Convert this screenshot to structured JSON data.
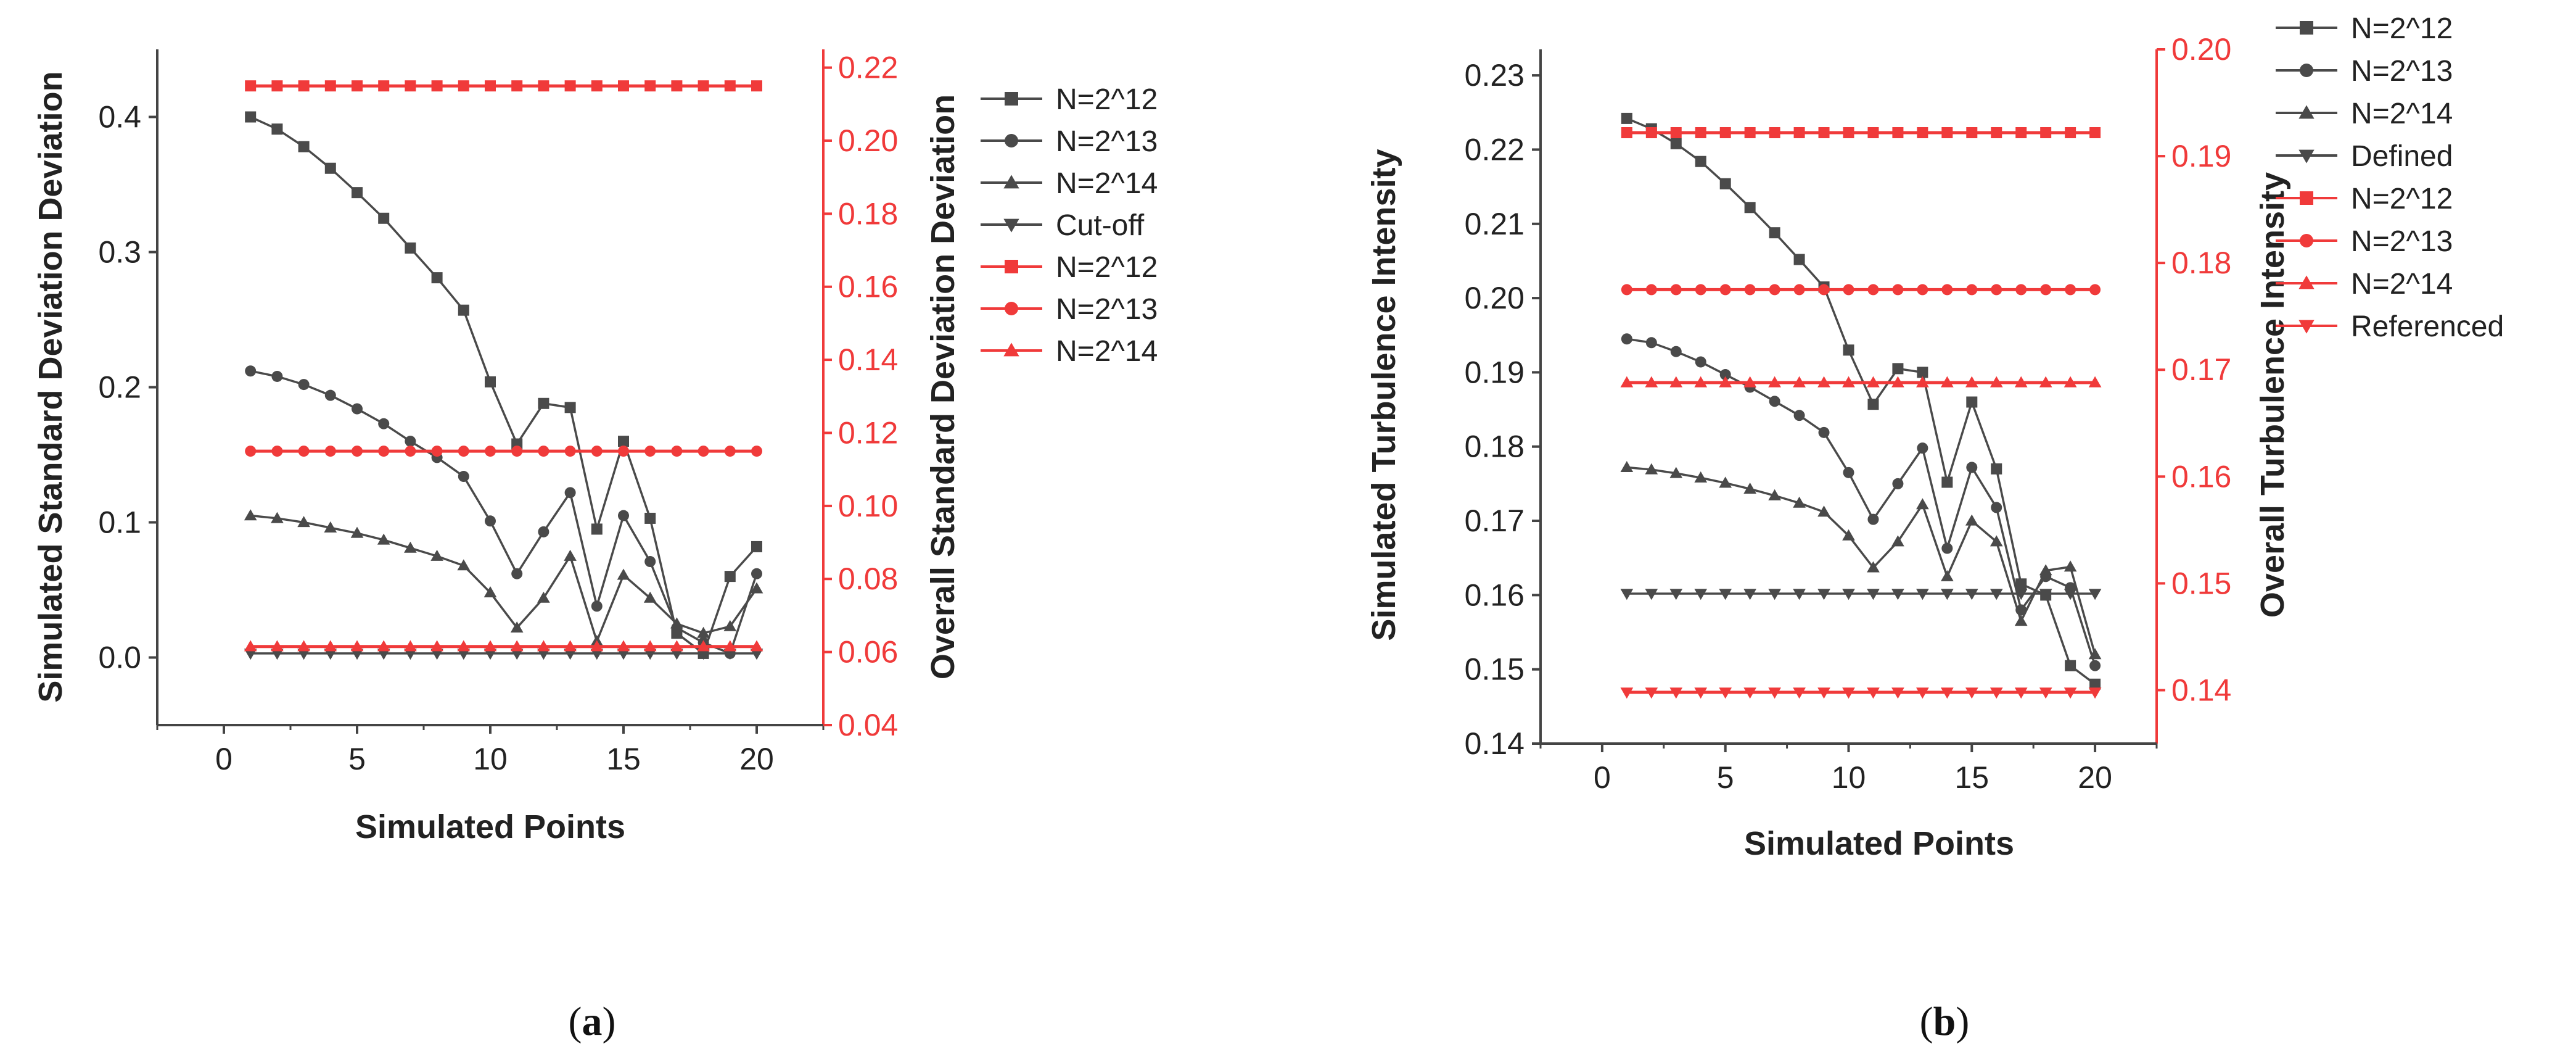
{
  "chart_data": [
    {
      "id": "a",
      "type": "line",
      "panel_label": "(a)",
      "panel_letter": "a",
      "xlabel": "Simulated Points",
      "ylabel": "Simulated Standard Deviation Deviation",
      "ylabel_right": "Overall Standard Deviation Deviation",
      "xlim": [
        -2.5,
        22.5
      ],
      "ylim": [
        -0.05,
        0.45
      ],
      "ylim_right": [
        0.04,
        0.225
      ],
      "x_ticks": [
        0,
        5,
        10,
        15,
        20
      ],
      "y_ticks": [
        "0.0",
        "0.1",
        "0.2",
        "0.3",
        "0.4"
      ],
      "y_ticks_right": [
        "0.04",
        "0.06",
        "0.08",
        "0.10",
        "0.12",
        "0.14",
        "0.16",
        "0.18",
        "0.20",
        "0.22"
      ],
      "legend_position": "outside-right",
      "x": [
        1,
        2,
        3,
        4,
        5,
        6,
        7,
        8,
        9,
        10,
        11,
        12,
        13,
        14,
        15,
        16,
        17,
        18,
        19,
        20
      ],
      "series": [
        {
          "name": "N=2^12",
          "axis": "left",
          "color": "#4a4a4a",
          "marker": "square",
          "values": [
            0.4,
            0.391,
            0.378,
            0.362,
            0.344,
            0.325,
            0.303,
            0.281,
            0.257,
            0.204,
            0.158,
            0.188,
            0.185,
            0.095,
            0.16,
            0.103,
            0.018,
            0.003,
            0.06,
            0.082
          ]
        },
        {
          "name": "N=2^13",
          "axis": "left",
          "color": "#4a4a4a",
          "marker": "circle",
          "values": [
            0.212,
            0.208,
            0.202,
            0.194,
            0.184,
            0.173,
            0.16,
            0.148,
            0.134,
            0.101,
            0.062,
            0.093,
            0.122,
            0.038,
            0.105,
            0.071,
            0.022,
            0.011,
            0.003,
            0.062
          ]
        },
        {
          "name": "N=2^14",
          "axis": "left",
          "color": "#4a4a4a",
          "marker": "triangle-up",
          "values": [
            0.105,
            0.103,
            0.1,
            0.096,
            0.092,
            0.087,
            0.081,
            0.075,
            0.068,
            0.048,
            0.022,
            0.044,
            0.075,
            0.012,
            0.061,
            0.044,
            0.025,
            0.018,
            0.023,
            0.051
          ]
        },
        {
          "name": "Cut-off",
          "axis": "left",
          "color": "#4a4a4a",
          "marker": "triangle-down",
          "values": [
            0.003,
            0.003,
            0.003,
            0.003,
            0.003,
            0.003,
            0.003,
            0.003,
            0.003,
            0.003,
            0.003,
            0.003,
            0.003,
            0.003,
            0.003,
            0.003,
            0.003,
            0.003,
            0.003,
            0.003
          ]
        },
        {
          "name": "N=2^12",
          "axis": "right",
          "color": "#f03a3a",
          "marker": "square",
          "values": [
            0.215,
            0.215,
            0.215,
            0.215,
            0.215,
            0.215,
            0.215,
            0.215,
            0.215,
            0.215,
            0.215,
            0.215,
            0.215,
            0.215,
            0.215,
            0.215,
            0.215,
            0.215,
            0.215,
            0.215
          ]
        },
        {
          "name": "N=2^13",
          "axis": "right",
          "color": "#f03a3a",
          "marker": "circle",
          "values": [
            0.115,
            0.115,
            0.115,
            0.115,
            0.115,
            0.115,
            0.115,
            0.115,
            0.115,
            0.115,
            0.115,
            0.115,
            0.115,
            0.115,
            0.115,
            0.115,
            0.115,
            0.115,
            0.115,
            0.115
          ]
        },
        {
          "name": "N=2^14",
          "axis": "right",
          "color": "#f03a3a",
          "marker": "triangle-up",
          "values": [
            0.0615,
            0.0615,
            0.0615,
            0.0615,
            0.0615,
            0.0615,
            0.0615,
            0.0615,
            0.0615,
            0.0615,
            0.0615,
            0.0615,
            0.0615,
            0.0615,
            0.0615,
            0.0615,
            0.0615,
            0.0615,
            0.0615,
            0.0615
          ]
        }
      ]
    },
    {
      "id": "b",
      "type": "line",
      "panel_label": "(b)",
      "panel_letter": "b",
      "xlabel": "Simulated Points",
      "ylabel": "Simulated Turbulence Intensity",
      "ylabel_right": "Overall Turbulence Intensity",
      "xlim": [
        -2.5,
        22.5
      ],
      "ylim": [
        0.14,
        0.2335
      ],
      "ylim_right": [
        0.135,
        0.2
      ],
      "x_ticks": [
        0,
        5,
        10,
        15,
        20
      ],
      "y_ticks": [
        "0.14",
        "0.15",
        "0.16",
        "0.17",
        "0.18",
        "0.19",
        "0.20",
        "0.21",
        "0.22",
        "0.23"
      ],
      "y_ticks_right": [
        "0.14",
        "0.15",
        "0.16",
        "0.17",
        "0.18",
        "0.19",
        "0.20"
      ],
      "legend_position": "outside-right",
      "x": [
        1,
        2,
        3,
        4,
        5,
        6,
        7,
        8,
        9,
        10,
        11,
        12,
        13,
        14,
        15,
        16,
        17,
        18,
        19,
        20
      ],
      "series": [
        {
          "name": "N=2^12",
          "axis": "left",
          "color": "#4a4a4a",
          "marker": "square",
          "values": [
            0.2242,
            0.2228,
            0.2208,
            0.2184,
            0.2154,
            0.2122,
            0.2088,
            0.2052,
            0.2015,
            0.193,
            0.1857,
            0.1905,
            0.19,
            0.1752,
            0.186,
            0.177,
            0.1615,
            0.16,
            0.1505,
            0.148
          ]
        },
        {
          "name": "N=2^13",
          "axis": "left",
          "color": "#4a4a4a",
          "marker": "circle",
          "values": [
            0.1945,
            0.194,
            0.1928,
            0.1914,
            0.1897,
            0.188,
            0.1861,
            0.1842,
            0.1819,
            0.1765,
            0.1702,
            0.175,
            0.1798,
            0.1663,
            0.1772,
            0.1718,
            0.158,
            0.1625,
            0.161,
            0.1505
          ]
        },
        {
          "name": "N=2^14",
          "axis": "left",
          "color": "#4a4a4a",
          "marker": "triangle-up",
          "values": [
            0.1772,
            0.1769,
            0.1764,
            0.1758,
            0.1751,
            0.1743,
            0.1734,
            0.1724,
            0.1712,
            0.168,
            0.1637,
            0.1672,
            0.1722,
            0.1625,
            0.17,
            0.1672,
            0.1565,
            0.1633,
            0.1638,
            0.152
          ]
        },
        {
          "name": "Defined",
          "axis": "left",
          "color": "#4a4a4a",
          "marker": "triangle-down",
          "values": [
            0.1602,
            0.1602,
            0.1602,
            0.1602,
            0.1602,
            0.1602,
            0.1602,
            0.1602,
            0.1602,
            0.1602,
            0.1602,
            0.1602,
            0.1602,
            0.1602,
            0.1602,
            0.1602,
            0.1602,
            0.1602,
            0.1602,
            0.1602
          ]
        },
        {
          "name": "N=2^12",
          "axis": "right",
          "color": "#f03a3a",
          "marker": "square",
          "values": [
            0.1922,
            0.1922,
            0.1922,
            0.1922,
            0.1922,
            0.1922,
            0.1922,
            0.1922,
            0.1922,
            0.1922,
            0.1922,
            0.1922,
            0.1922,
            0.1922,
            0.1922,
            0.1922,
            0.1922,
            0.1922,
            0.1922,
            0.1922
          ]
        },
        {
          "name": "N=2^13",
          "axis": "right",
          "color": "#f03a3a",
          "marker": "circle",
          "values": [
            0.1775,
            0.1775,
            0.1775,
            0.1775,
            0.1775,
            0.1775,
            0.1775,
            0.1775,
            0.1775,
            0.1775,
            0.1775,
            0.1775,
            0.1775,
            0.1775,
            0.1775,
            0.1775,
            0.1775,
            0.1775,
            0.1775,
            0.1775
          ]
        },
        {
          "name": "N=2^14",
          "axis": "right",
          "color": "#f03a3a",
          "marker": "triangle-up",
          "values": [
            0.1688,
            0.1688,
            0.1688,
            0.1688,
            0.1688,
            0.1688,
            0.1688,
            0.1688,
            0.1688,
            0.1688,
            0.1688,
            0.1688,
            0.1688,
            0.1688,
            0.1688,
            0.1688,
            0.1688,
            0.1688,
            0.1688,
            0.1688
          ]
        },
        {
          "name": "Referenced",
          "axis": "right",
          "color": "#f03a3a",
          "marker": "triangle-down",
          "values": [
            0.1398,
            0.1398,
            0.1398,
            0.1398,
            0.1398,
            0.1398,
            0.1398,
            0.1398,
            0.1398,
            0.1398,
            0.1398,
            0.1398,
            0.1398,
            0.1398,
            0.1398,
            0.1398,
            0.1398,
            0.1398,
            0.1398,
            0.1398
          ]
        }
      ]
    }
  ]
}
